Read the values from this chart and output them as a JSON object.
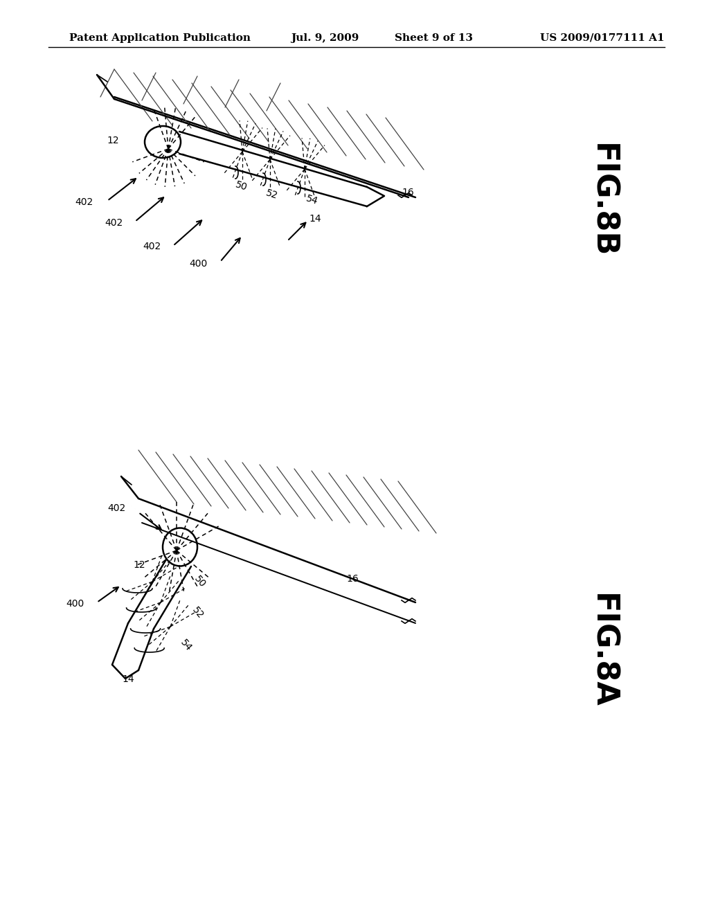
{
  "header_left": "Patent Application Publication",
  "header_mid": "Jul. 9, 2009",
  "header_right_1": "Sheet 9 of 13",
  "header_right_2": "US 2009/0177111 A1",
  "fig_top_label": "FIG.8B",
  "fig_bot_label": "FIG.8A",
  "background": "#ffffff",
  "line_color": "#000000"
}
